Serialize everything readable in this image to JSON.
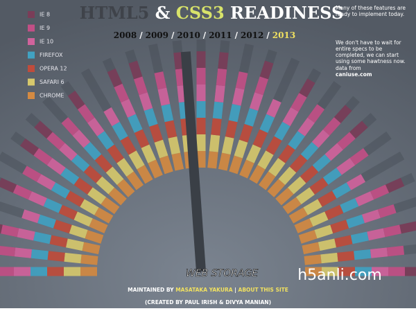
{
  "header": {
    "title": [
      {
        "text": "HTML5",
        "color": "#3f434a"
      },
      {
        "text": " & ",
        "color": "#ffffff"
      },
      {
        "text": "CSS3",
        "color": "#d8e36a"
      },
      {
        "text": " READINESS",
        "color": "#ffffff"
      }
    ],
    "years": [
      "2008",
      "2009",
      "2010",
      "2011",
      "2012",
      "2013"
    ],
    "separator": "/"
  },
  "legend": [
    {
      "label": "IE 8",
      "color": "#7a3d58"
    },
    {
      "label": "IE 9",
      "color": "#c24f86"
    },
    {
      "label": "IE 10",
      "color": "#d0639c"
    },
    {
      "label": "FIREFOX",
      "color": "#41a2c2"
    },
    {
      "label": "OPERA 12",
      "color": "#bf4c3c"
    },
    {
      "label": "SAFARI 6",
      "color": "#d6c86c"
    },
    {
      "label": "CHROME",
      "color": "#d48a42"
    }
  ],
  "sidebar": {
    "paragraphs": [
      "Many of these features are ready to implement today.",
      "We don't have to wait for entire specs to be completed, we can start using some hawtness now."
    ],
    "source_prefix": "data from",
    "source": "caniuse.com"
  },
  "footer": {
    "feature": "WEB STORAGE",
    "maintained_prefix": "MAINTAINED BY",
    "maintainer": "MASATAKA YAKURA",
    "divider": "|",
    "about": "ABOUT THIS SITE",
    "credits_prefix": "(CREATED BY",
    "author1": "PAUL IRISH",
    "amp": "&",
    "author2": "DIVYA MANIAN",
    "credits_suffix": ")"
  },
  "watermark": "h5anli.com"
}
